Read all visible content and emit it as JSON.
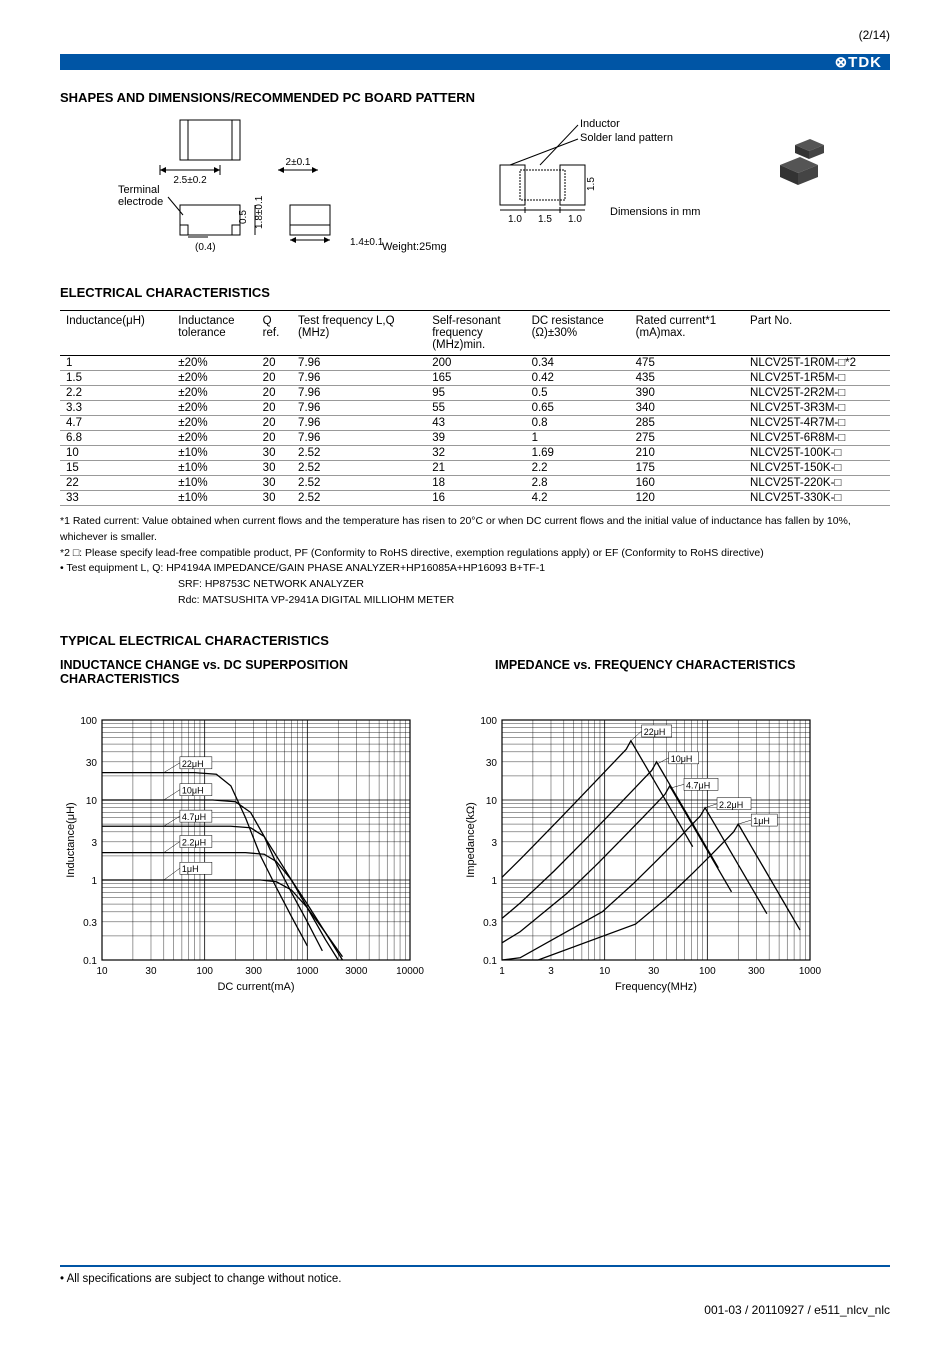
{
  "pageNumber": "(2/14)",
  "logo": "⊗TDK",
  "sections": {
    "shapes": {
      "title": "SHAPES AND DIMENSIONS/RECOMMENDED PC BOARD PATTERN",
      "terminalLabel": "Terminal",
      "electrodeLabel": "electrode",
      "dims": {
        "w": "2.5±0.2",
        "l": "2±0.1",
        "t1": "(0.4)",
        "t2": "0.5",
        "t3": "1.8±0.1",
        "t4": "1.4±0.1"
      },
      "weight": "Weight:25mg",
      "pcb": {
        "inductorLabel": "Inductor",
        "solderLabel": "Solder land pattern",
        "a": "1.0",
        "b": "1.5",
        "c": "1.0",
        "h": "1.5",
        "unitLabel": "Dimensions in mm"
      }
    },
    "elec": {
      "title": "ELECTRICAL CHARACTERISTICS",
      "columns": [
        "Inductance(μH)",
        "Inductance\ntolerance",
        "Q\nref.",
        "Test frequency L,Q\n(MHz)",
        "Self-resonant\nfrequency\n(MHz)min.",
        "DC resistance\n(Ω)±30%",
        "Rated current*1\n(mA)max.",
        "Part No."
      ],
      "rows": [
        [
          "1",
          "±20%",
          "20",
          "7.96",
          "200",
          "0.34",
          "475",
          "NLCV25T-1R0M-□*2"
        ],
        [
          "1.5",
          "±20%",
          "20",
          "7.96",
          "165",
          "0.42",
          "435",
          "NLCV25T-1R5M-□"
        ],
        [
          "2.2",
          "±20%",
          "20",
          "7.96",
          "95",
          "0.5",
          "390",
          "NLCV25T-2R2M-□"
        ],
        [
          "3.3",
          "±20%",
          "20",
          "7.96",
          "55",
          "0.65",
          "340",
          "NLCV25T-3R3M-□"
        ],
        [
          "4.7",
          "±20%",
          "20",
          "7.96",
          "43",
          "0.8",
          "285",
          "NLCV25T-4R7M-□"
        ],
        [
          "6.8",
          "±20%",
          "20",
          "7.96",
          "39",
          "1",
          "275",
          "NLCV25T-6R8M-□"
        ],
        [
          "10",
          "±10%",
          "30",
          "2.52",
          "32",
          "1.69",
          "210",
          "NLCV25T-100K-□"
        ],
        [
          "15",
          "±10%",
          "30",
          "2.52",
          "21",
          "2.2",
          "175",
          "NLCV25T-150K-□"
        ],
        [
          "22",
          "±10%",
          "30",
          "2.52",
          "18",
          "2.8",
          "160",
          "NLCV25T-220K-□"
        ],
        [
          "33",
          "±10%",
          "30",
          "2.52",
          "16",
          "4.2",
          "120",
          "NLCV25T-330K-□"
        ]
      ],
      "notes": [
        "*1 Rated current: Value obtained when current flows and the temperature has risen to 20°C or when DC current flows and the initial value of inductance has fallen by 10%, whichever is smaller.",
        "*2 □: Please specify lead-free compatible product, PF (Conformity to RoHS directive, exemption regulations apply) or EF (Conformity to RoHS directive)",
        "• Test equipment  L, Q: HP4194A IMPEDANCE/GAIN PHASE ANALYZER+HP16085A+HP16093 B+TF-1",
        "SRF: HP8753C NETWORK ANALYZER",
        "Rdc: MATSUSHITA VP-2941A DIGITAL MILLIOHM METER"
      ]
    },
    "typ": {
      "title": "TYPICAL ELECTRICAL CHARACTERISTICS",
      "chart1": {
        "title": "INDUCTANCE CHANGE vs. DC SUPERPOSITION CHARACTERISTICS",
        "xlabel": "DC current(mA)",
        "ylabel": "Inductance(μH)",
        "yticks": [
          "0.1",
          "0.3",
          "1",
          "3",
          "10",
          "30",
          "100"
        ],
        "xticks": [
          "10",
          "30",
          "100",
          "300",
          "1000",
          "3000",
          "10000"
        ],
        "seriesLabels": [
          "22μH",
          "10μH",
          "4.7μH",
          "2.2μH",
          "1μH"
        ]
      },
      "chart2": {
        "title": "IMPEDANCE vs. FREQUENCY CHARACTERISTICS",
        "xlabel": "Frequency(MHz)",
        "ylabel": "Impedance(kΩ)",
        "yticks": [
          "0.1",
          "0.3",
          "1",
          "3",
          "10",
          "30",
          "100"
        ],
        "xticks": [
          "1",
          "3",
          "10",
          "30",
          "100",
          "300",
          "1000"
        ],
        "seriesLabels": [
          "22μH",
          "10μH",
          "4.7μH",
          "2.2μH",
          "1μH"
        ]
      }
    }
  },
  "disclaimer": "• All specifications are subject to change without notice.",
  "docCode": "001-03 / 20110927 / e511_nlcv_nlc"
}
